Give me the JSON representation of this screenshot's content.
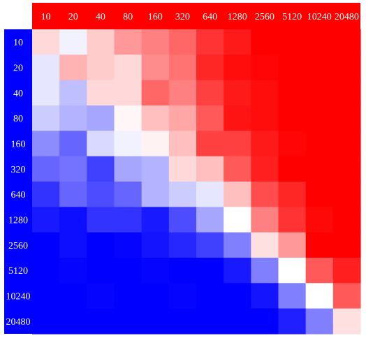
{
  "header_band_color": "#ff0000",
  "side_band_color": "#0000ff",
  "label_color": "#ffffff",
  "chart_data": {
    "type": "heatmap",
    "x_labels": [
      "10",
      "20",
      "40",
      "80",
      "160",
      "320",
      "640",
      "1280",
      "2560",
      "5120",
      "10240",
      "20480"
    ],
    "y_labels": [
      "10",
      "20",
      "40",
      "80",
      "160",
      "320",
      "640",
      "1280",
      "2560",
      "5120",
      "10240",
      "20480"
    ],
    "value_range": [
      -1,
      1
    ],
    "colormap": {
      "low": "#0000ff",
      "mid": "#ffffff",
      "high": "#ff0000"
    },
    "values": [
      [
        0.15,
        -0.05,
        0.2,
        0.4,
        0.5,
        0.6,
        0.8,
        0.9,
        1.0,
        1.0,
        1.0,
        1.0
      ],
      [
        -0.1,
        0.3,
        0.2,
        0.15,
        0.45,
        0.55,
        0.85,
        0.95,
        0.98,
        1.0,
        1.0,
        1.0
      ],
      [
        -0.1,
        -0.25,
        0.15,
        0.15,
        0.6,
        0.5,
        0.75,
        0.9,
        0.95,
        1.0,
        1.0,
        1.0
      ],
      [
        -0.2,
        -0.3,
        -0.35,
        0.03,
        0.25,
        0.35,
        0.65,
        0.92,
        0.95,
        1.0,
        1.0,
        1.0
      ],
      [
        -0.45,
        -0.6,
        -0.15,
        -0.05,
        0.05,
        0.25,
        0.75,
        0.75,
        0.9,
        0.98,
        1.0,
        1.0
      ],
      [
        -0.6,
        -0.55,
        -0.75,
        -0.35,
        -0.3,
        0.15,
        0.25,
        0.65,
        0.88,
        1.0,
        1.0,
        1.0
      ],
      [
        -0.8,
        -0.6,
        -0.7,
        -0.6,
        -0.3,
        -0.2,
        -0.1,
        0.25,
        0.7,
        0.85,
        1.0,
        1.0
      ],
      [
        -0.9,
        -0.95,
        -0.8,
        -0.8,
        -0.9,
        -0.7,
        -0.35,
        0.0,
        0.5,
        0.8,
        0.97,
        1.0
      ],
      [
        -1.0,
        -0.95,
        -1.0,
        -0.98,
        -0.92,
        -0.85,
        -0.75,
        -0.5,
        0.12,
        0.4,
        1.0,
        1.0
      ],
      [
        -1.0,
        -0.98,
        -1.0,
        -1.0,
        -0.98,
        -1.0,
        -1.0,
        -0.9,
        -0.5,
        0.0,
        0.65,
        0.88
      ],
      [
        -1.0,
        -1.0,
        -0.98,
        -1.0,
        -1.0,
        -0.98,
        -1.0,
        -1.0,
        -0.92,
        -0.5,
        0.0,
        0.65
      ],
      [
        -1.0,
        -1.0,
        -1.0,
        -1.0,
        -1.0,
        -1.0,
        -1.0,
        -1.0,
        -1.0,
        -0.88,
        -0.5,
        0.12
      ]
    ]
  }
}
